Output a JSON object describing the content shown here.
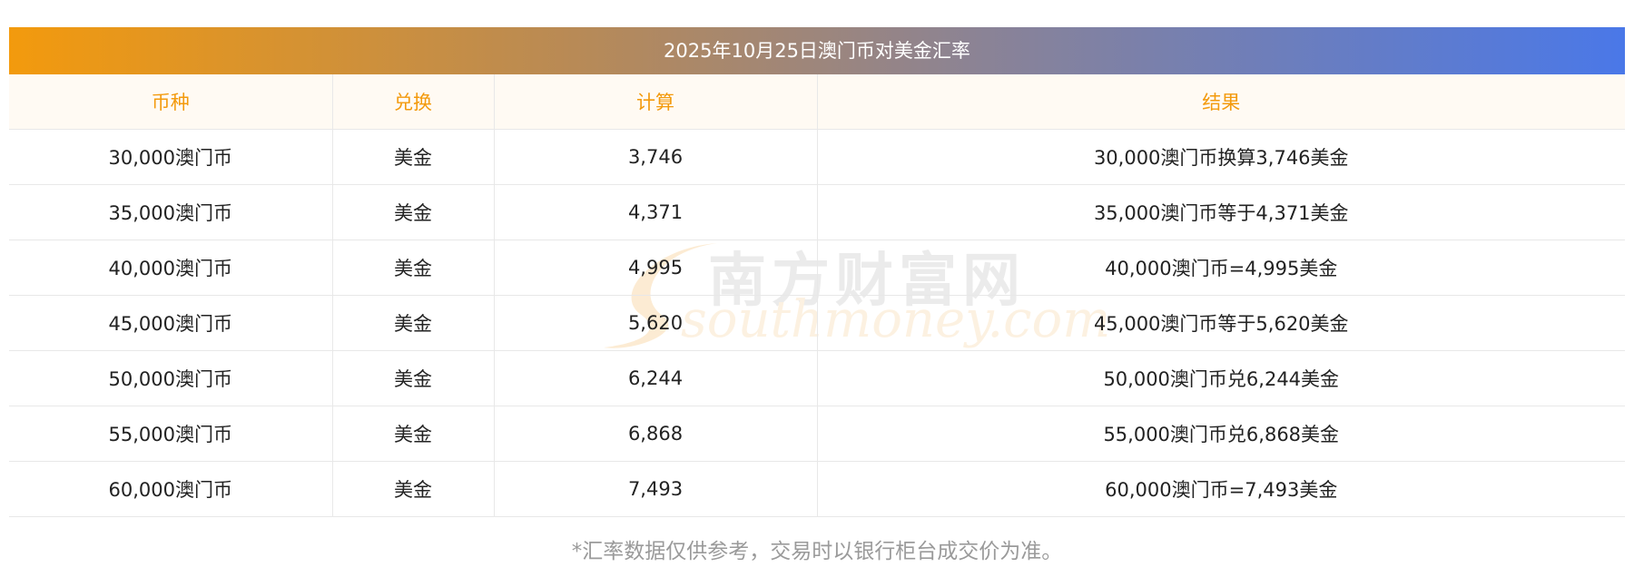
{
  "title": "2025年10月25日澳门币对美金汇率",
  "headers": [
    "币种",
    "兑换",
    "计算",
    "结果"
  ],
  "rows": [
    {
      "currency": "30,000澳门币",
      "target": "美金",
      "calc": "3,746",
      "result": "30,000澳门币换算3,746美金"
    },
    {
      "currency": "35,000澳门币",
      "target": "美金",
      "calc": "4,371",
      "result": "35,000澳门币等于4,371美金"
    },
    {
      "currency": "40,000澳门币",
      "target": "美金",
      "calc": "4,995",
      "result": "40,000澳门币=4,995美金"
    },
    {
      "currency": "45,000澳门币",
      "target": "美金",
      "calc": "5,620",
      "result": "45,000澳门币等于5,620美金"
    },
    {
      "currency": "50,000澳门币",
      "target": "美金",
      "calc": "6,244",
      "result": "50,000澳门币兑6,244美金"
    },
    {
      "currency": "55,000澳门币",
      "target": "美金",
      "calc": "6,868",
      "result": "55,000澳门币兑6,868美金"
    },
    {
      "currency": "60,000澳门币",
      "target": "美金",
      "calc": "7,493",
      "result": "60,000澳门币=7,493美金"
    }
  ],
  "watermark": {
    "cn": "南方财富网",
    "en": "southmoney.com"
  },
  "footnote": "*汇率数据仅供参考，交易时以银行柜台成交价为准。",
  "colors": {
    "header_text": "#f39a0d",
    "gradient_start": "#f39a0d",
    "gradient_end": "#4a78e8"
  }
}
